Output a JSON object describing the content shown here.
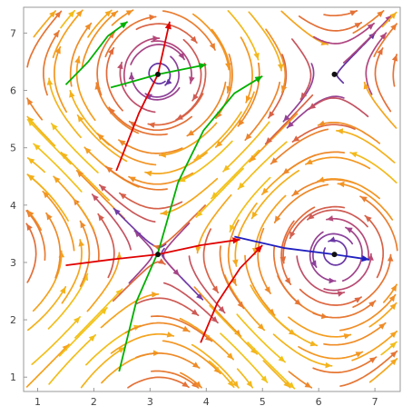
{
  "chart_data": {
    "type": "streamplot",
    "title": "",
    "xlabel": "",
    "ylabel": "",
    "xlim": [
      0.75,
      7.45
    ],
    "ylim": [
      0.75,
      7.45
    ],
    "x_ticks": [
      1,
      2,
      3,
      4,
      5,
      6,
      7
    ],
    "y_ticks": [
      1,
      2,
      3,
      4,
      5,
      6,
      7
    ],
    "grid": false,
    "legend": "none",
    "color_scale": [
      "#4a2a9c",
      "#7b3fa8",
      "#b0457f",
      "#e0683c",
      "#f59a1f",
      "#f2c21a"
    ],
    "critical_points": [
      {
        "x": 3.14,
        "y": 6.28
      },
      {
        "x": 6.28,
        "y": 6.28
      },
      {
        "x": 3.14,
        "y": 3.14
      },
      {
        "x": 6.28,
        "y": 3.14
      }
    ],
    "separatrices": [
      {
        "color": "#00b000",
        "points": [
          [
            2.45,
            1.1
          ],
          [
            2.75,
            2.3
          ],
          [
            3.15,
            3.2
          ],
          [
            3.5,
            4.4
          ],
          [
            3.95,
            5.3
          ],
          [
            4.5,
            5.95
          ],
          [
            5.0,
            6.25
          ]
        ]
      },
      {
        "color": "#00b000",
        "points": [
          [
            1.5,
            6.1
          ],
          [
            1.9,
            6.5
          ],
          [
            2.25,
            6.95
          ],
          [
            2.6,
            7.2
          ]
        ]
      },
      {
        "color": "#00b000",
        "points": [
          [
            2.3,
            6.05
          ],
          [
            3.14,
            6.28
          ],
          [
            4.0,
            6.45
          ]
        ]
      },
      {
        "color": "#e00000",
        "points": [
          [
            2.4,
            4.6
          ],
          [
            2.8,
            5.6
          ],
          [
            3.14,
            6.28
          ],
          [
            3.35,
            7.2
          ]
        ]
      },
      {
        "color": "#e00000",
        "points": [
          [
            1.5,
            2.95
          ],
          [
            2.3,
            3.05
          ],
          [
            3.14,
            3.14
          ],
          [
            3.9,
            3.3
          ],
          [
            4.6,
            3.4
          ]
        ]
      },
      {
        "color": "#e00000",
        "points": [
          [
            3.9,
            1.6
          ],
          [
            4.2,
            2.3
          ],
          [
            4.6,
            2.9
          ],
          [
            5.0,
            3.3
          ]
        ]
      },
      {
        "color": "#2020c0",
        "points": [
          [
            4.5,
            3.45
          ],
          [
            5.4,
            3.25
          ],
          [
            6.28,
            3.14
          ],
          [
            6.9,
            3.05
          ]
        ]
      }
    ]
  }
}
